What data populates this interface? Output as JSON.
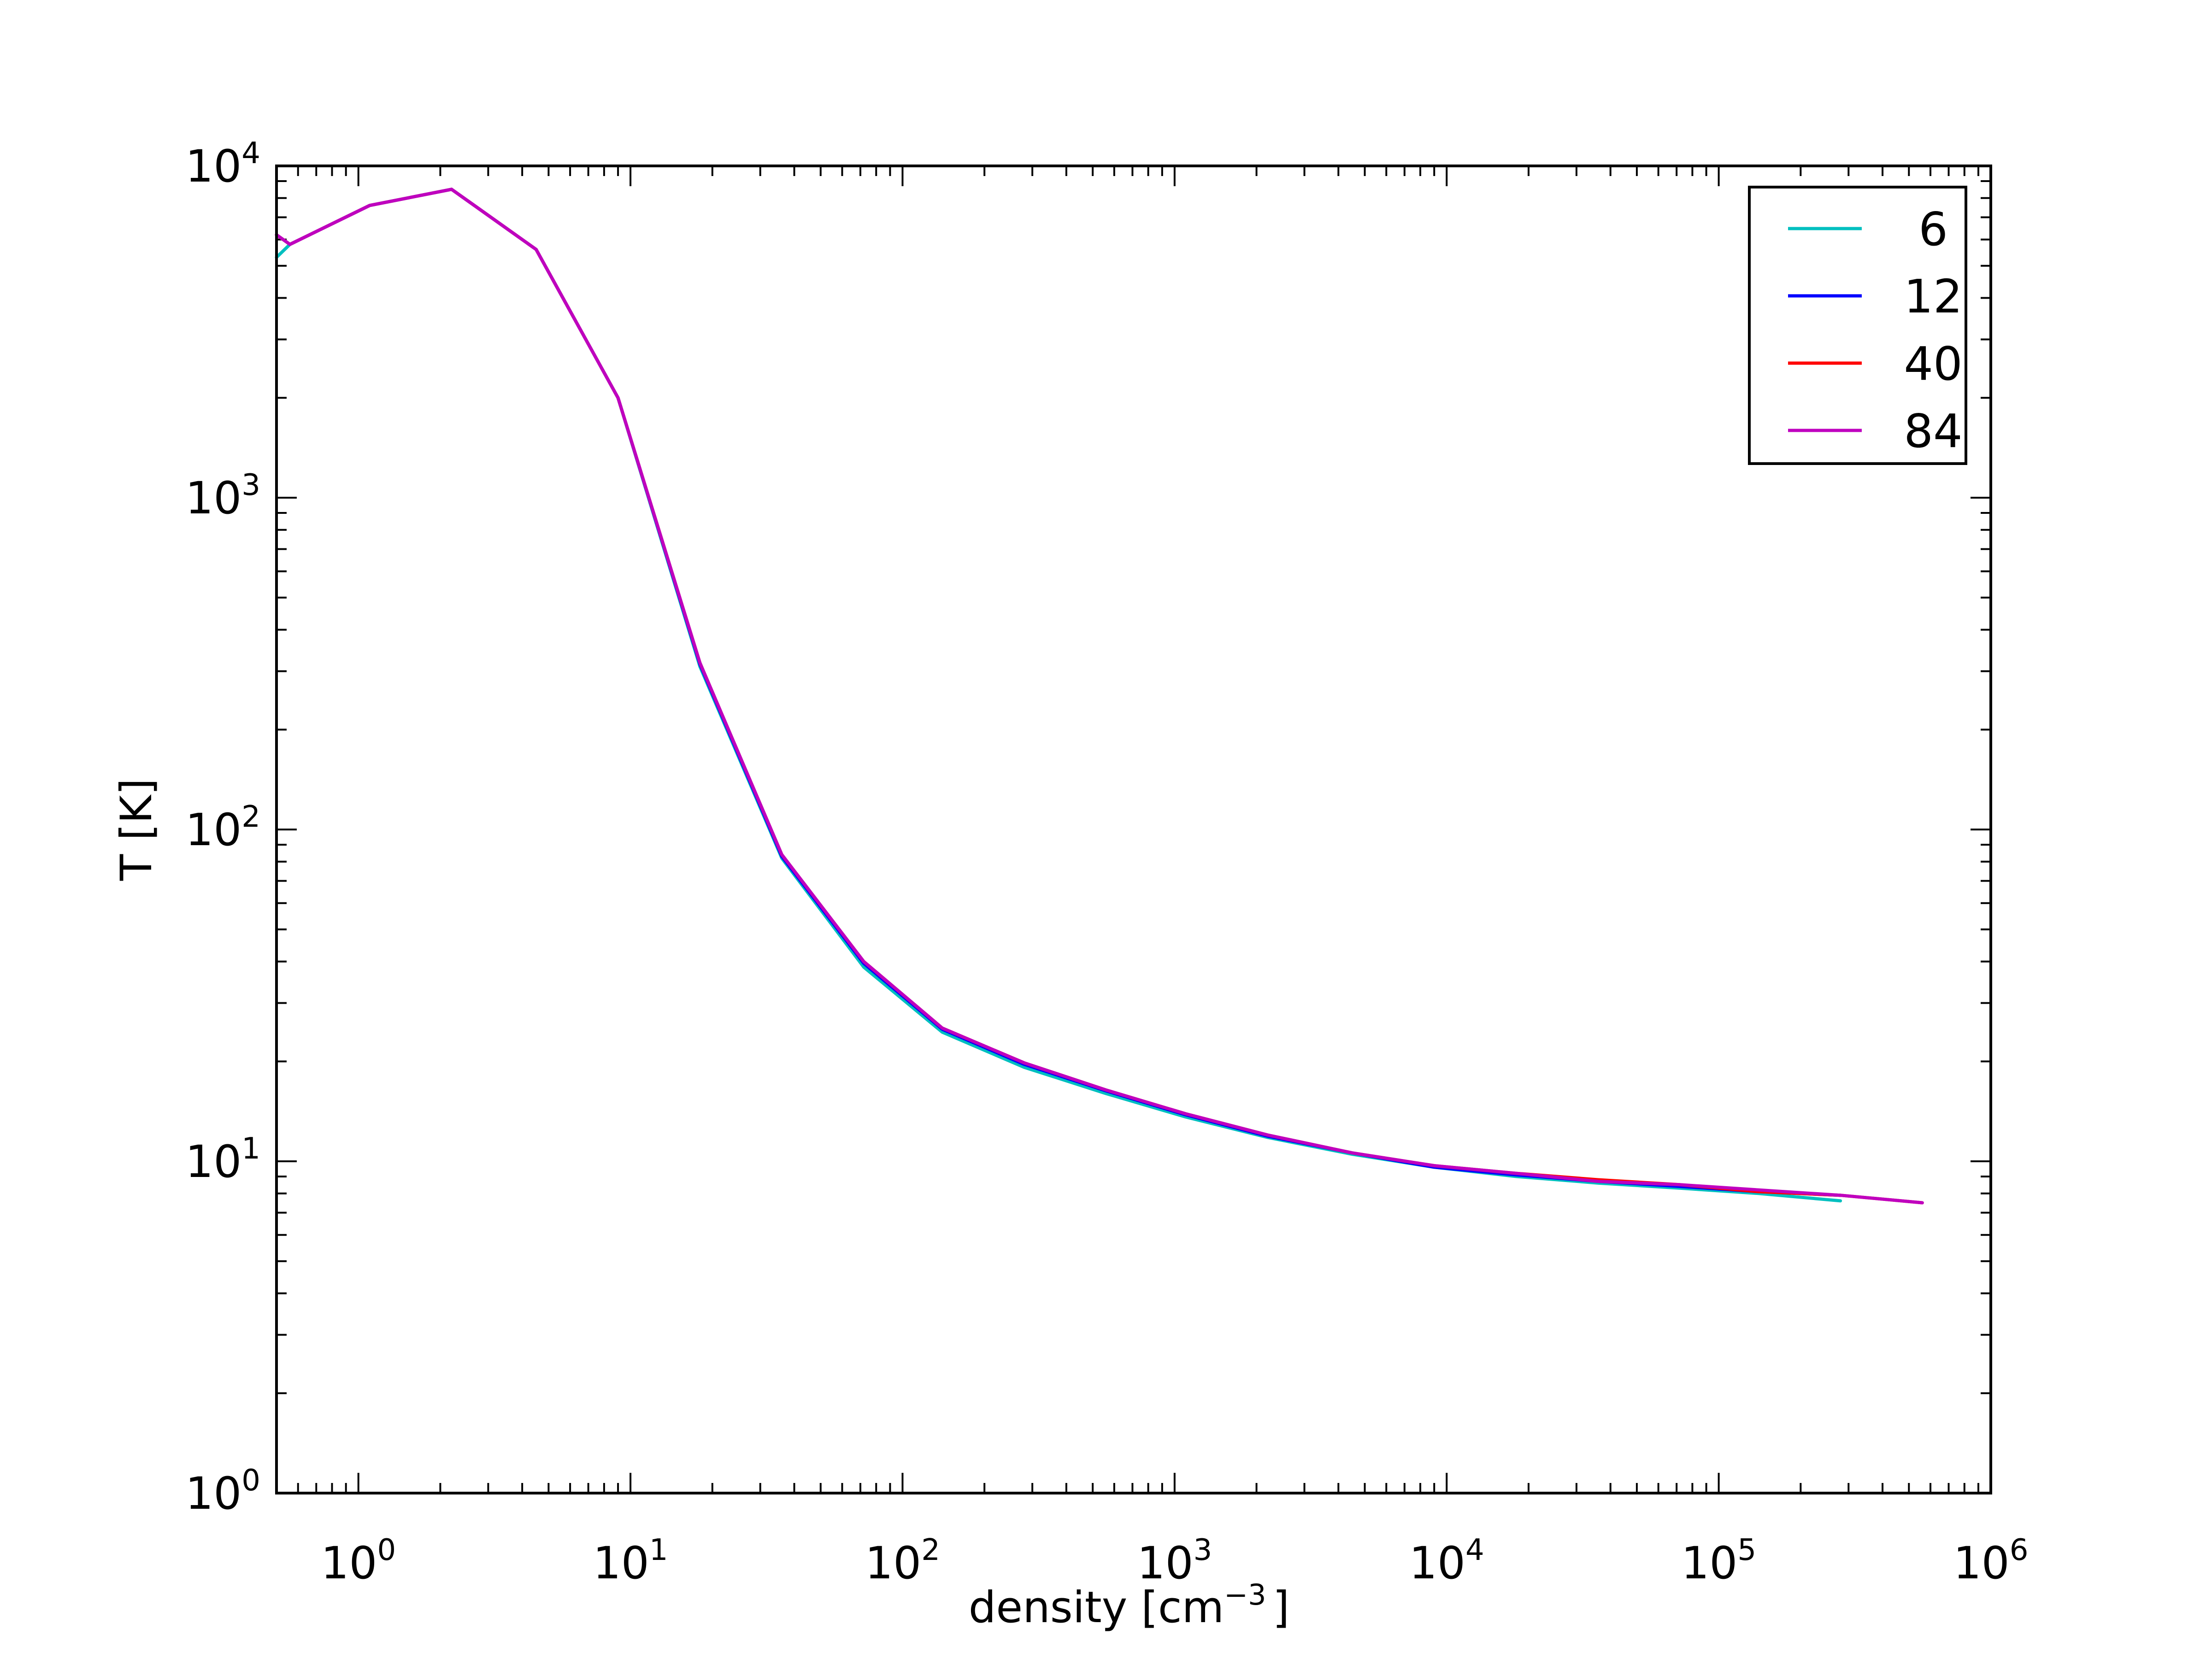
{
  "chart_data": {
    "type": "line",
    "xscale": "log",
    "yscale": "log",
    "xlim": [
      0.5,
      1000000
    ],
    "ylim": [
      1,
      10000
    ],
    "xlabel": "density [cm",
    "xlabel_exp": "−3",
    "xlabel_close": "]",
    "ylabel": "T [K]",
    "grid": false,
    "legend_position": "top-right",
    "x_ticks": [
      {
        "value": 1,
        "base": "10",
        "exp": "0"
      },
      {
        "value": 10,
        "base": "10",
        "exp": "1"
      },
      {
        "value": 100,
        "base": "10",
        "exp": "2"
      },
      {
        "value": 1000,
        "base": "10",
        "exp": "3"
      },
      {
        "value": 10000,
        "base": "10",
        "exp": "4"
      },
      {
        "value": 100000,
        "base": "10",
        "exp": "5"
      },
      {
        "value": 1000000,
        "base": "10",
        "exp": "6"
      }
    ],
    "y_ticks": [
      {
        "value": 1,
        "base": "10",
        "exp": "0"
      },
      {
        "value": 10,
        "base": "10",
        "exp": "1"
      },
      {
        "value": 100,
        "base": "10",
        "exp": "2"
      },
      {
        "value": 1000,
        "base": "10",
        "exp": "3"
      },
      {
        "value": 10000,
        "base": "10",
        "exp": "4"
      }
    ],
    "series": [
      {
        "name": "6",
        "color": "#00bfbf",
        "x": [
          0.5,
          0.56,
          1.1,
          2.2,
          4.5,
          9,
          18,
          36,
          72,
          140,
          280,
          560,
          1100,
          2200,
          4500,
          9000,
          18000,
          36000,
          72000,
          140000,
          280000
        ],
        "y": [
          5300,
          5800,
          7600,
          8500,
          5600,
          2000,
          310,
          82,
          38.5,
          24.5,
          19.2,
          16.0,
          13.6,
          11.8,
          10.5,
          9.6,
          9.0,
          8.6,
          8.3,
          8.0,
          7.6
        ]
      },
      {
        "name": "12",
        "color": "#0000ff",
        "x": [
          0.5,
          0.56,
          1.1,
          2.2,
          4.5,
          9,
          18,
          36,
          72,
          140,
          280,
          560,
          1100,
          2200,
          4500,
          9000,
          18000,
          36000,
          72000,
          140000,
          280000
        ],
        "y": [
          6200,
          5800,
          7600,
          8500,
          5600,
          2000,
          315,
          83,
          39.5,
          25.0,
          19.6,
          16.3,
          13.8,
          11.9,
          10.6,
          9.6,
          9.1,
          8.7,
          8.4,
          8.1,
          7.9
        ]
      },
      {
        "name": "40",
        "color": "#ff0000",
        "x": [
          0.5,
          0.56,
          1.1,
          2.2,
          4.5,
          9,
          18,
          36,
          72,
          140,
          280,
          560,
          1100,
          2200,
          4500,
          9000,
          18000,
          36000,
          72000,
          140000,
          280000,
          560000
        ],
        "y": [
          6200,
          5800,
          7600,
          8500,
          5600,
          2000,
          318,
          84,
          40,
          25.2,
          19.8,
          16.4,
          13.9,
          12.0,
          10.6,
          9.7,
          9.2,
          8.8,
          8.5,
          8.1,
          7.9,
          7.5
        ]
      },
      {
        "name": "84",
        "color": "#bf00bf",
        "x": [
          0.5,
          0.56,
          1.1,
          2.2,
          4.5,
          9,
          18,
          36,
          72,
          140,
          280,
          560,
          1100,
          2200,
          4500,
          9000,
          18000,
          36000,
          72000,
          140000,
          280000,
          560000
        ],
        "y": [
          6200,
          5800,
          7600,
          8500,
          5600,
          2000,
          318,
          84,
          40,
          25.2,
          19.8,
          16.4,
          13.9,
          12.0,
          10.6,
          9.7,
          9.2,
          8.7,
          8.5,
          8.2,
          7.9,
          7.5
        ]
      }
    ]
  }
}
